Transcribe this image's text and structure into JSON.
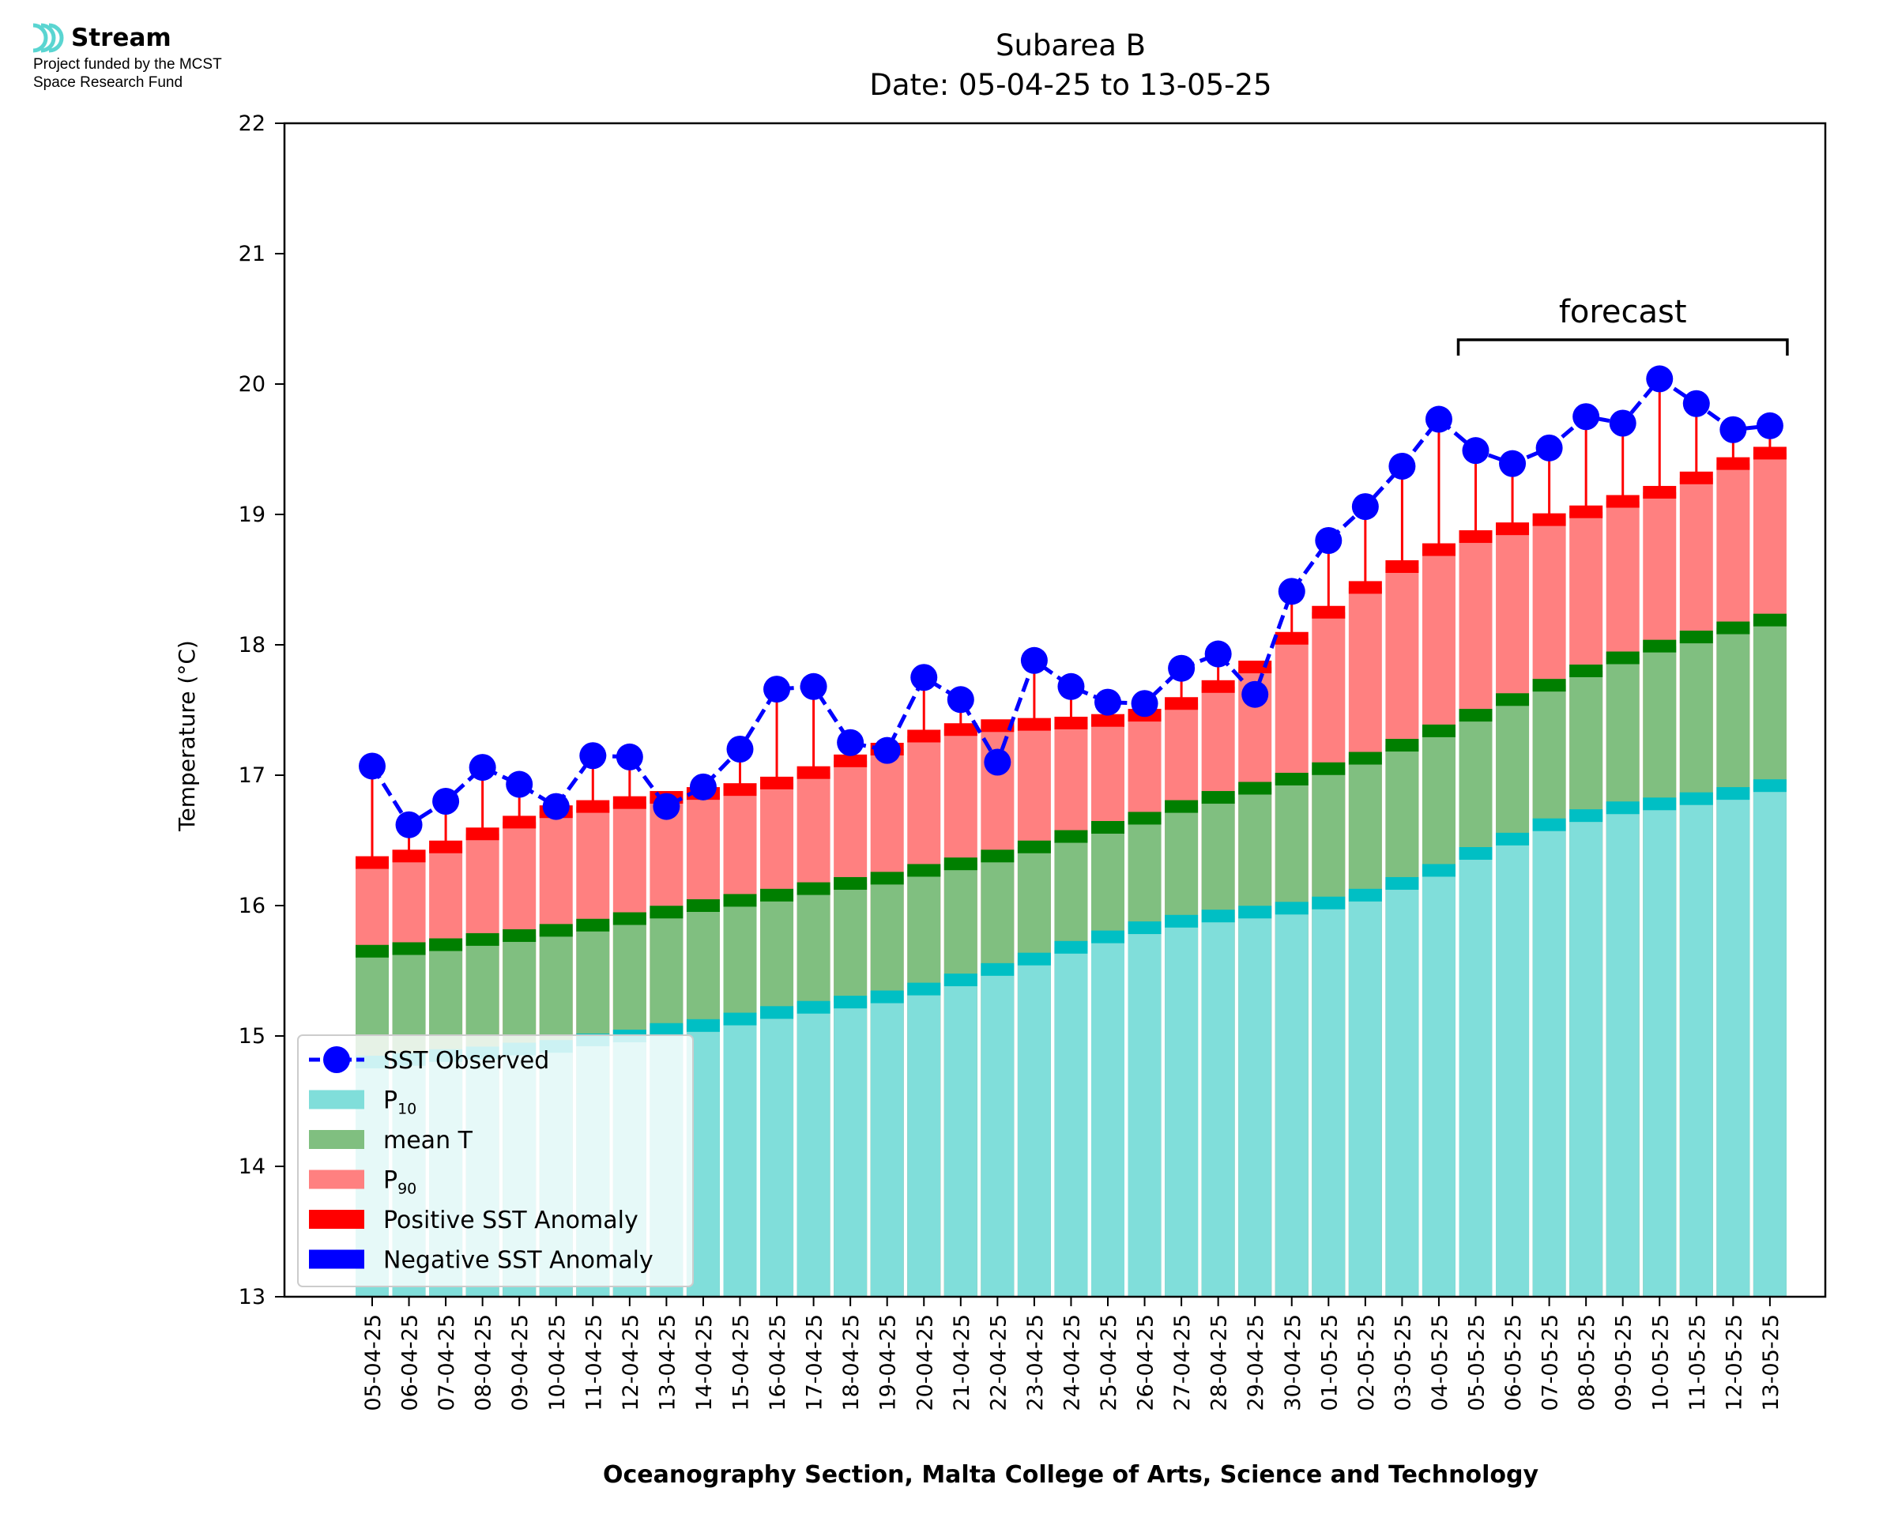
{
  "logo": {
    "name": "Stream",
    "line1": "Project funded by the MCST",
    "line2": "Space Research Fund"
  },
  "chart_data": {
    "type": "bar",
    "title": "Subarea B",
    "subtitle": "Date: 05-04-25 to 13-05-25",
    "xlabel": "Oceanography Section, Malta College of Arts, Science and Technology",
    "ylabel": "Temperature (°C)",
    "ylim": [
      13,
      22
    ],
    "yticks": [
      13,
      14,
      15,
      16,
      17,
      18,
      19,
      20,
      21,
      22
    ],
    "categories": [
      "05-04-25",
      "06-04-25",
      "07-04-25",
      "08-04-25",
      "09-04-25",
      "10-04-25",
      "11-04-25",
      "12-04-25",
      "13-04-25",
      "14-04-25",
      "15-04-25",
      "16-04-25",
      "17-04-25",
      "18-04-25",
      "19-04-25",
      "20-04-25",
      "21-04-25",
      "22-04-25",
      "23-04-25",
      "24-04-25",
      "25-04-25",
      "26-04-25",
      "27-04-25",
      "28-04-25",
      "29-04-25",
      "30-04-25",
      "01-05-25",
      "02-05-25",
      "03-05-25",
      "04-05-25",
      "05-05-25",
      "06-05-25",
      "07-05-25",
      "08-05-25",
      "09-05-25",
      "10-05-25",
      "11-05-25",
      "12-05-25",
      "13-05-25"
    ],
    "series": [
      {
        "name": "SST Observed",
        "color": "#0000ff",
        "kind": "line-dashed-markers",
        "values": [
          17.07,
          16.62,
          16.8,
          17.06,
          16.93,
          16.76,
          17.15,
          17.14,
          16.76,
          16.91,
          17.2,
          17.66,
          17.68,
          17.25,
          17.19,
          17.75,
          17.58,
          17.1,
          17.88,
          17.68,
          17.56,
          17.55,
          17.82,
          17.93,
          17.62,
          18.41,
          18.8,
          19.06,
          19.37,
          19.73,
          19.49,
          19.39,
          19.51,
          19.75,
          19.7,
          20.04,
          19.85,
          19.65,
          19.68
        ]
      },
      {
        "name": "P10",
        "color": "#80deda",
        "edge_color": "#00bfc4",
        "kind": "bar",
        "values": [
          14.8,
          14.82,
          14.85,
          14.87,
          14.9,
          14.92,
          14.97,
          15.0,
          15.05,
          15.08,
          15.13,
          15.18,
          15.22,
          15.26,
          15.3,
          15.36,
          15.43,
          15.51,
          15.59,
          15.68,
          15.76,
          15.83,
          15.88,
          15.92,
          15.95,
          15.98,
          16.02,
          16.08,
          16.17,
          16.27,
          16.4,
          16.51,
          16.62,
          16.69,
          16.75,
          16.78,
          16.82,
          16.86,
          16.92
        ]
      },
      {
        "name": "mean T",
        "color": "#80bf80",
        "edge_color": "#007f00",
        "kind": "bar",
        "values": [
          15.65,
          15.67,
          15.7,
          15.74,
          15.77,
          15.81,
          15.85,
          15.9,
          15.95,
          16.0,
          16.04,
          16.08,
          16.13,
          16.17,
          16.21,
          16.27,
          16.32,
          16.38,
          16.45,
          16.53,
          16.6,
          16.67,
          16.76,
          16.83,
          16.9,
          16.97,
          17.05,
          17.13,
          17.23,
          17.34,
          17.46,
          17.58,
          17.69,
          17.8,
          17.9,
          17.99,
          18.06,
          18.13,
          18.19
        ]
      },
      {
        "name": "P90",
        "color": "#ff8080",
        "edge_color": "#ff0000",
        "kind": "bar",
        "values": [
          16.33,
          16.38,
          16.45,
          16.55,
          16.64,
          16.72,
          16.76,
          16.79,
          16.83,
          16.86,
          16.89,
          16.94,
          17.02,
          17.11,
          17.2,
          17.3,
          17.35,
          17.38,
          17.39,
          17.4,
          17.42,
          17.46,
          17.55,
          17.68,
          17.83,
          18.05,
          18.25,
          18.44,
          18.6,
          18.73,
          18.83,
          18.89,
          18.96,
          19.02,
          19.1,
          19.17,
          19.28,
          19.39,
          19.47
        ]
      }
    ],
    "legend": {
      "position": "lower-left",
      "entries": [
        {
          "label": "SST Observed",
          "color": "#0000ff",
          "kind": "line"
        },
        {
          "label": "P",
          "sub": "10",
          "color": "#80deda",
          "kind": "patch"
        },
        {
          "label": "mean T",
          "color": "#80bf80",
          "kind": "patch"
        },
        {
          "label": "P",
          "sub": "90",
          "color": "#ff8080",
          "kind": "patch"
        },
        {
          "label": "Positive SST Anomaly",
          "color": "#ff0000",
          "kind": "patch"
        },
        {
          "label": "Negative SST Anomaly",
          "color": "#0000ff",
          "kind": "patch"
        }
      ]
    },
    "annotation": {
      "text": "forecast",
      "from": "05-05-25",
      "to": "13-05-25"
    },
    "grid": false
  }
}
